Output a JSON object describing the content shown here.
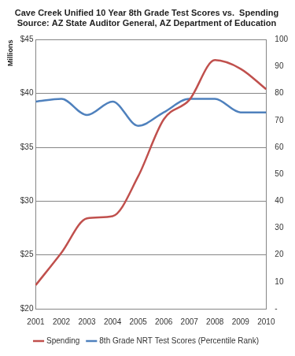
{
  "chart_data": {
    "type": "line",
    "title": [
      "Cave Creek Unified 10 Year 8th Grade Test Scores vs.  Spending",
      "Source: AZ State Auditor General, AZ Department of Education"
    ],
    "y_label": "Millions",
    "categories": [
      "2001",
      "2002",
      "2003",
      "2004",
      "2005",
      "2006",
      "2007",
      "2008",
      "2009",
      "2010"
    ],
    "series": [
      {
        "name": "Spending",
        "color": "#c0504d",
        "line_style": "smooth",
        "marker": "none",
        "values": [
          22.2,
          25.2,
          28.4,
          28.6,
          32.3,
          37.6,
          39.4,
          43.1,
          42.3,
          40.4
        ]
      },
      {
        "name": "8th Grade NRT Test Scores (Percentile Rank)",
        "color": "#4f81bd",
        "line_style": "smooth",
        "marker": "none",
        "axis": "y2",
        "values": [
          77,
          78,
          72,
          77,
          68,
          73,
          78,
          78,
          73,
          73
        ]
      }
    ],
    "ylim": [
      20,
      45
    ],
    "yticks": [
      {
        "value": 20,
        "label": "$20"
      },
      {
        "value": 25,
        "label": "$25"
      },
      {
        "value": 30,
        "label": "$30"
      },
      {
        "value": 35,
        "label": "$35"
      },
      {
        "value": 40,
        "label": "$40"
      },
      {
        "value": 45,
        "label": "$45"
      }
    ],
    "y2lim": [
      0,
      100
    ],
    "y2ticks": [
      {
        "value": 0,
        "label": "-"
      },
      10,
      20,
      30,
      40,
      50,
      60,
      70,
      80,
      90,
      100
    ],
    "grid": true,
    "legend": "bottom"
  }
}
